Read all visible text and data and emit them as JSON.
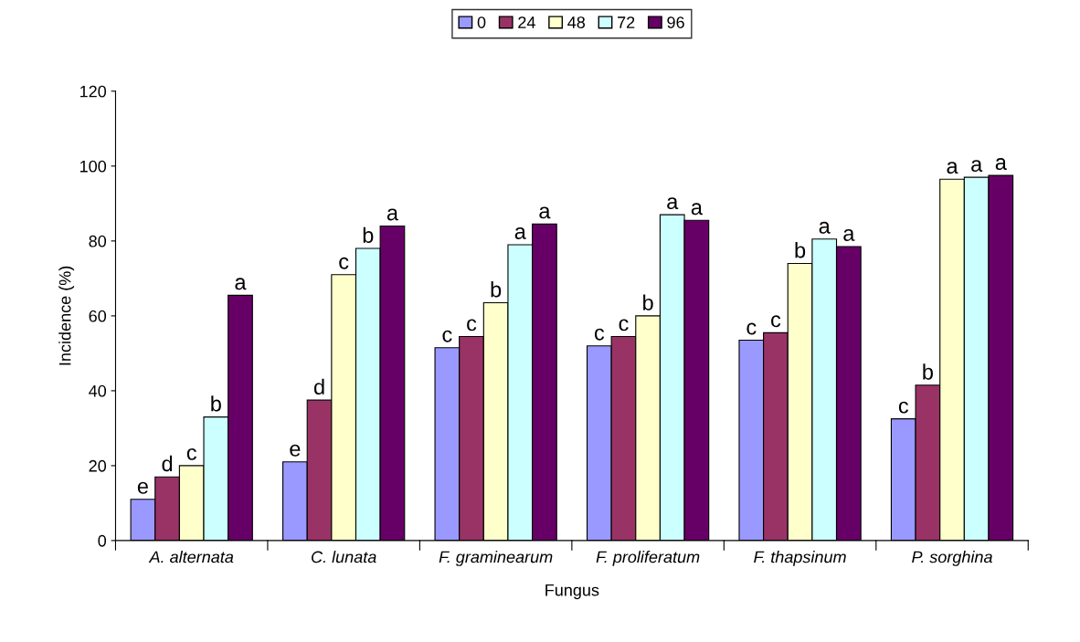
{
  "chart_data": {
    "type": "bar",
    "xlabel": "Fungus",
    "ylabel": "Incidence (%)",
    "categories": [
      "A. alternata",
      "C. lunata",
      "F. graminearum",
      "F. proliferatum",
      "F. thapsinum",
      "P. sorghina"
    ],
    "series": [
      {
        "name": "0",
        "color": "#9999ff",
        "values": [
          11,
          21,
          51.5,
          52,
          53.5,
          32.5
        ],
        "value_labels": [
          "e",
          "e",
          "c",
          "c",
          "c",
          "c"
        ]
      },
      {
        "name": "24",
        "color": "#993366",
        "values": [
          17,
          37.5,
          54.5,
          54.5,
          55.5,
          41.5
        ],
        "value_labels": [
          "d",
          "d",
          "c",
          "c",
          "c",
          "b"
        ]
      },
      {
        "name": "48",
        "color": "#ffffcc",
        "values": [
          20,
          71,
          63.5,
          60,
          74,
          96.5
        ],
        "value_labels": [
          "c",
          "c",
          "b",
          "b",
          "b",
          "a"
        ]
      },
      {
        "name": "72",
        "color": "#ccffff",
        "values": [
          33,
          78,
          79,
          87,
          80.5,
          97
        ],
        "value_labels": [
          "b",
          "b",
          "a",
          "a",
          "a",
          "a"
        ]
      },
      {
        "name": "96",
        "color": "#660066",
        "values": [
          65.5,
          84,
          84.5,
          85.5,
          78.5,
          97.5
        ],
        "value_labels": [
          "a",
          "a",
          "a",
          "a",
          "a",
          "a"
        ]
      }
    ],
    "ylim": [
      0,
      120
    ],
    "yticks": [
      0,
      20,
      40,
      60,
      80,
      100,
      120
    ],
    "grid": false,
    "legend": "top"
  }
}
